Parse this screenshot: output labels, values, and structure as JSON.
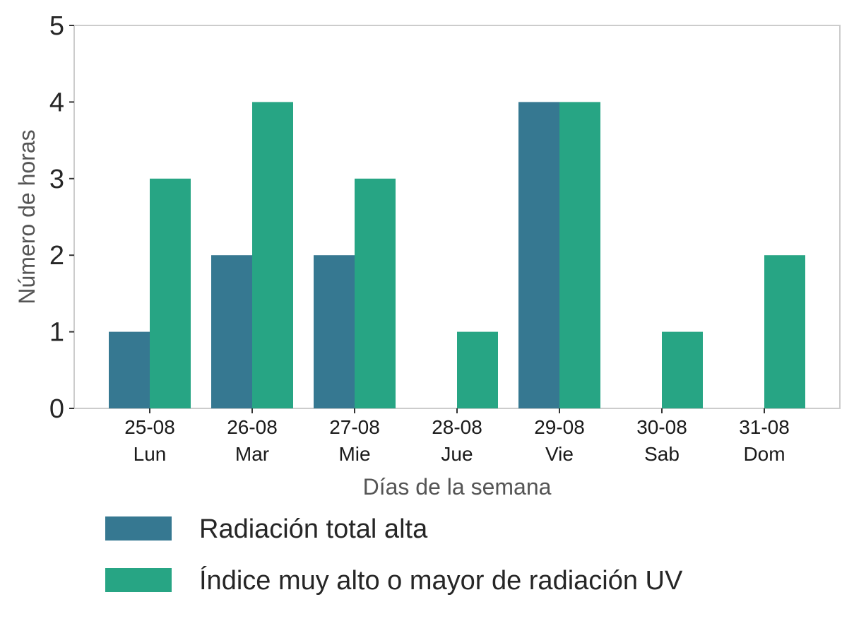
{
  "chart_data": {
    "type": "bar",
    "xlabel": "Días de la semana",
    "ylabel": "Número de horas",
    "ylim": [
      0,
      5
    ],
    "yticks": [
      0,
      1,
      2,
      3,
      4,
      5
    ],
    "grid": false,
    "legend_position": "bottom",
    "categories": [
      {
        "date": "25-08",
        "day": "Lun"
      },
      {
        "date": "26-08",
        "day": "Mar"
      },
      {
        "date": "27-08",
        "day": "Mie"
      },
      {
        "date": "28-08",
        "day": "Jue"
      },
      {
        "date": "29-08",
        "day": "Vie"
      },
      {
        "date": "30-08",
        "day": "Sab"
      },
      {
        "date": "31-08",
        "day": "Dom"
      }
    ],
    "series": [
      {
        "name": "Radiación total alta",
        "color": "#367891",
        "values": [
          1,
          2,
          2,
          0,
          4,
          0,
          0
        ]
      },
      {
        "name": "Índice muy alto o mayor de radiación UV",
        "color": "#27A584",
        "values": [
          3,
          4,
          3,
          1,
          4,
          1,
          2
        ]
      }
    ]
  }
}
